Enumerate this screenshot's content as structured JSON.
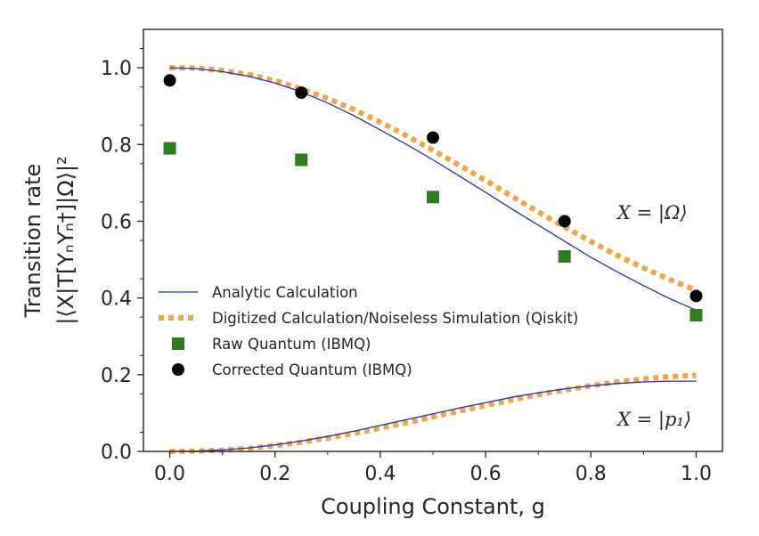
{
  "chart_data": {
    "type": "line",
    "title": "",
    "xlabel": "Coupling Constant, g",
    "ylabel_line1": "Transition rate",
    "ylabel_line2": "|⟨X|T[YₙYₙ̄†]|Ω⟩|²",
    "xlim": [
      -0.05,
      1.05
    ],
    "ylim": [
      0.0,
      1.1
    ],
    "xticks": [
      "0.0",
      "0.2",
      "0.4",
      "0.6",
      "0.8",
      "1.0"
    ],
    "yticks": [
      "0.0",
      "0.2",
      "0.4",
      "0.6",
      "0.8",
      "1.0"
    ],
    "legend_position": "lower-left",
    "series": [
      {
        "name": "Analytic Calculation",
        "style": "line",
        "color": "#1f2fd6",
        "groups": [
          {
            "x": [
              0,
              0.05,
              0.1,
              0.15,
              0.2,
              0.25,
              0.3,
              0.35,
              0.4,
              0.45,
              0.5,
              0.55,
              0.6,
              0.65,
              0.7,
              0.75,
              0.8,
              0.85,
              0.9,
              0.95,
              1.0
            ],
            "y": [
              1.0,
              0.998,
              0.99,
              0.978,
              0.96,
              0.937,
              0.908,
              0.875,
              0.838,
              0.8,
              0.76,
              0.718,
              0.675,
              0.632,
              0.59,
              0.548,
              0.506,
              0.468,
              0.432,
              0.398,
              0.368
            ]
          },
          {
            "x": [
              0,
              0.05,
              0.1,
              0.15,
              0.2,
              0.25,
              0.3,
              0.35,
              0.4,
              0.45,
              0.5,
              0.55,
              0.6,
              0.65,
              0.7,
              0.75,
              0.8,
              0.85,
              0.9,
              0.95,
              1.0
            ],
            "y": [
              0.0,
              0.001,
              0.004,
              0.009,
              0.017,
              0.027,
              0.039,
              0.053,
              0.068,
              0.083,
              0.098,
              0.113,
              0.127,
              0.141,
              0.153,
              0.163,
              0.171,
              0.177,
              0.181,
              0.183,
              0.183
            ]
          }
        ]
      },
      {
        "name": "Digitized Calculation/Noiseless Simulation (Qiskit)",
        "style": "dotted",
        "color": "#f2a640",
        "groups": [
          {
            "x": [
              0,
              0.05,
              0.1,
              0.15,
              0.2,
              0.25,
              0.3,
              0.35,
              0.4,
              0.45,
              0.5,
              0.55,
              0.6,
              0.65,
              0.7,
              0.75,
              0.8,
              0.85,
              0.9,
              0.95,
              1.0
            ],
            "y": [
              1.0,
              0.999,
              0.993,
              0.982,
              0.966,
              0.945,
              0.92,
              0.891,
              0.858,
              0.823,
              0.785,
              0.746,
              0.706,
              0.665,
              0.624,
              0.585,
              0.547,
              0.511,
              0.478,
              0.448,
              0.42
            ]
          },
          {
            "x": [
              0,
              0.05,
              0.1,
              0.15,
              0.2,
              0.25,
              0.3,
              0.35,
              0.4,
              0.45,
              0.5,
              0.55,
              0.6,
              0.65,
              0.7,
              0.75,
              0.8,
              0.85,
              0.9,
              0.95,
              1.0
            ],
            "y": [
              0.0,
              0.001,
              0.003,
              0.008,
              0.015,
              0.024,
              0.035,
              0.047,
              0.061,
              0.075,
              0.09,
              0.105,
              0.12,
              0.134,
              0.148,
              0.16,
              0.171,
              0.181,
              0.189,
              0.195,
              0.198
            ]
          }
        ]
      },
      {
        "name": "Raw Quantum (IBMQ)",
        "style": "square",
        "color": "#2e7d1f",
        "x": [
          0.0,
          0.25,
          0.5,
          0.75,
          1.0
        ],
        "y": [
          0.79,
          0.76,
          0.663,
          0.508,
          0.355
        ]
      },
      {
        "name": "Corrected Quantum (IBMQ)",
        "style": "circle",
        "color": "#000000",
        "x": [
          0.0,
          0.25,
          0.5,
          0.75,
          1.0
        ],
        "y": [
          0.967,
          0.935,
          0.818,
          0.6,
          0.405
        ]
      }
    ],
    "annotations": [
      {
        "text": "X = |Ω⟩",
        "x": 0.86,
        "y": 0.615
      },
      {
        "text": "X = |p₁⟩",
        "x": 0.86,
        "y": 0.085
      }
    ]
  }
}
